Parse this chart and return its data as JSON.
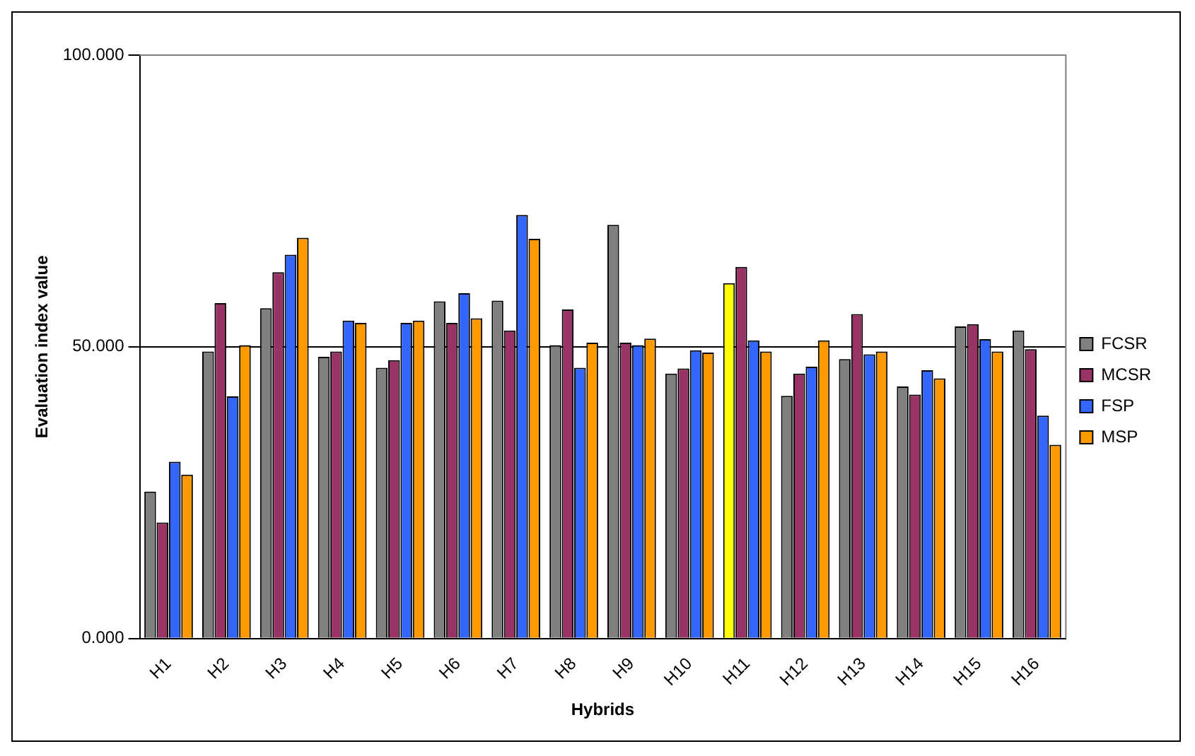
{
  "chart_data": {
    "type": "bar",
    "xlabel": "Hybrids",
    "ylabel": "Evaluation index value",
    "categories": [
      "H1",
      "H2",
      "H3",
      "H4",
      "H5",
      "H6",
      "H7",
      "H8",
      "H9",
      "H10",
      "H11",
      "H12",
      "H13",
      "H14",
      "H15",
      "H16"
    ],
    "series": [
      {
        "name": "FCSR",
        "color": "#808080",
        "colors": [
          "#808080",
          "#808080",
          "#808080",
          "#808080",
          "#808080",
          "#808080",
          "#808080",
          "#808080",
          "#808080",
          "#808080",
          "#ffff00",
          "#808080",
          "#808080",
          "#808080",
          "#808080",
          "#808080"
        ],
        "values": [
          25.2,
          49.2,
          56.6,
          48.3,
          46.4,
          57.8,
          57.9,
          50.3,
          70.9,
          45.4,
          60.9,
          41.6,
          47.9,
          43.2,
          53.5,
          52.8
        ]
      },
      {
        "name": "MCSR",
        "color": "#993366",
        "values": [
          19.9,
          57.5,
          62.8,
          49.2,
          47.7,
          54.1,
          52.8,
          56.4,
          50.7,
          46.3,
          63.7,
          45.4,
          55.6,
          41.8,
          53.9,
          49.6
        ]
      },
      {
        "name": "FSP",
        "color": "#3366ff",
        "values": [
          30.3,
          41.5,
          65.8,
          54.5,
          54.1,
          59.2,
          72.6,
          46.4,
          50.3,
          49.4,
          51.1,
          46.6,
          48.7,
          46.0,
          51.3,
          38.2
        ]
      },
      {
        "name": "MSP",
        "color": "#ff9900",
        "values": [
          28.1,
          50.3,
          68.7,
          54.1,
          54.5,
          54.9,
          68.5,
          50.7,
          51.4,
          49.0,
          49.2,
          51.1,
          49.2,
          44.6,
          49.2,
          33.2
        ]
      }
    ],
    "ylim": [
      0,
      100
    ],
    "yticks": [
      {
        "value": 0,
        "label": "0.000"
      },
      {
        "value": 50,
        "label": "50.000"
      },
      {
        "value": 100,
        "label": "100.000"
      }
    ],
    "grid": "y",
    "legend": "right"
  }
}
